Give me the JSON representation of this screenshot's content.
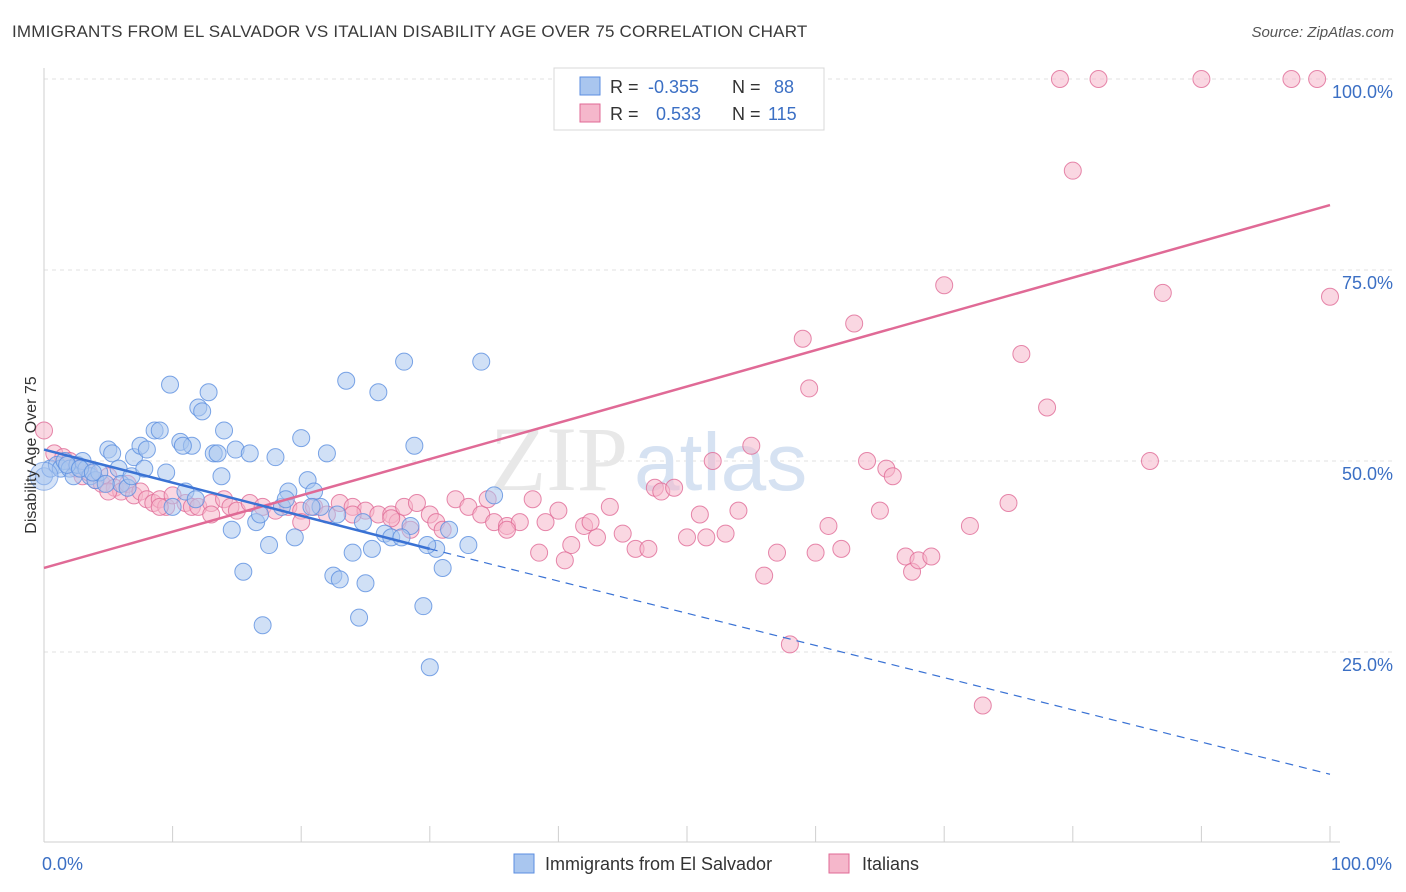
{
  "title": "IMMIGRANTS FROM EL SALVADOR VS ITALIAN DISABILITY AGE OVER 75 CORRELATION CHART",
  "source": "Source: ZipAtlas.com",
  "watermark": {
    "zip": "ZIP",
    "atlas": "atlas"
  },
  "colors": {
    "blue": "#5b8ee0",
    "blue_fill": "#a9c6ef",
    "pink": "#e06a96",
    "pink_fill": "#f5b7cb",
    "tick": "#3b6fc4"
  },
  "legend": {
    "r_label": "R =",
    "n_label": "N =",
    "blue": {
      "r": "-0.355",
      "n": "88"
    },
    "pink": {
      "r": "0.533",
      "n": "115"
    }
  },
  "bottom_legend": {
    "blue": "Immigrants from El Salvador",
    "pink": "Italians"
  },
  "chart_data": {
    "type": "scatter",
    "title": "IMMIGRANTS FROM EL SALVADOR VS ITALIAN DISABILITY AGE OVER 75 CORRELATION CHART",
    "xlabel": "",
    "ylabel": "Disability Age Over 75",
    "xlim": [
      0,
      100
    ],
    "ylim": [
      0,
      103
    ],
    "x_tick_labels": [
      "0.0%",
      "100.0%"
    ],
    "y_tick_labels": [
      "25.0%",
      "50.0%",
      "75.0%",
      "100.0%"
    ],
    "y_ticks": [
      25,
      50,
      75,
      100
    ],
    "grid": true,
    "legend_position": "top-center",
    "series": [
      {
        "name": "Immigrants from El Salvador",
        "color": "#5b8ee0",
        "trend": {
          "x0": 0,
          "y0": 51.5,
          "x1": 30,
          "y1": 38.5,
          "dash_to_x": 100,
          "dash_to_y": 9
        },
        "points": [
          [
            0,
            48
          ],
          [
            0.5,
            49
          ],
          [
            1,
            49.5
          ],
          [
            1.3,
            49
          ],
          [
            1.6,
            50
          ],
          [
            2,
            49
          ],
          [
            2.3,
            48
          ],
          [
            2.6,
            49.5
          ],
          [
            3,
            50
          ],
          [
            3.3,
            49
          ],
          [
            3.6,
            48
          ],
          [
            4,
            47.5
          ],
          [
            4.3,
            48.5
          ],
          [
            5,
            51.5
          ],
          [
            5.3,
            51
          ],
          [
            5.8,
            49
          ],
          [
            6,
            47
          ],
          [
            6.5,
            46.5
          ],
          [
            7,
            50.5
          ],
          [
            7.5,
            52
          ],
          [
            8,
            51.5
          ],
          [
            8.6,
            54
          ],
          [
            9,
            54
          ],
          [
            9.5,
            48.5
          ],
          [
            10,
            44
          ],
          [
            10.6,
            52.5
          ],
          [
            11,
            46
          ],
          [
            11.5,
            52
          ],
          [
            12,
            57
          ],
          [
            12.3,
            56.5
          ],
          [
            12.8,
            59
          ],
          [
            13.2,
            51
          ],
          [
            13.5,
            51
          ],
          [
            14,
            54
          ],
          [
            14.6,
            41
          ],
          [
            14.9,
            51.5
          ],
          [
            15.5,
            35.5
          ],
          [
            16,
            51
          ],
          [
            16.5,
            42
          ],
          [
            17,
            28.5
          ],
          [
            17.5,
            39
          ],
          [
            18,
            50.5
          ],
          [
            18.5,
            44
          ],
          [
            19,
            46
          ],
          [
            19.5,
            40
          ],
          [
            20,
            53
          ],
          [
            20.5,
            47.5
          ],
          [
            21,
            46
          ],
          [
            21.5,
            44
          ],
          [
            22,
            51
          ],
          [
            22.5,
            35
          ],
          [
            23,
            34.5
          ],
          [
            23.5,
            60.5
          ],
          [
            24,
            38
          ],
          [
            24.5,
            29.5
          ],
          [
            25,
            34
          ],
          [
            25.5,
            38.5
          ],
          [
            26,
            59
          ],
          [
            26.5,
            40.5
          ],
          [
            27,
            40
          ],
          [
            28,
            63
          ],
          [
            28.5,
            41.5
          ],
          [
            28.8,
            52
          ],
          [
            29.5,
            31
          ],
          [
            30,
            23
          ],
          [
            30.5,
            38.5
          ],
          [
            31,
            36
          ],
          [
            33,
            39
          ],
          [
            34,
            63
          ],
          [
            35,
            45.5
          ],
          [
            1.8,
            49.5
          ],
          [
            2.8,
            49
          ],
          [
            3.8,
            48.5
          ],
          [
            4.8,
            47
          ],
          [
            6.8,
            48
          ],
          [
            7.8,
            49
          ],
          [
            9.8,
            60
          ],
          [
            10.8,
            52
          ],
          [
            11.8,
            45
          ],
          [
            13.8,
            48
          ],
          [
            16.8,
            43
          ],
          [
            18.8,
            45
          ],
          [
            20.8,
            44
          ],
          [
            22.8,
            43
          ],
          [
            24.8,
            42
          ],
          [
            27.8,
            40
          ],
          [
            29.8,
            39
          ],
          [
            31.5,
            41
          ]
        ]
      },
      {
        "name": "Italians",
        "color": "#e06a96",
        "trend": {
          "x0": 0,
          "y0": 36,
          "x1": 100,
          "y1": 83.5
        },
        "points": [
          [
            0,
            54
          ],
          [
            0.8,
            51
          ],
          [
            1.5,
            50.5
          ],
          [
            2,
            50
          ],
          [
            2.5,
            49
          ],
          [
            3,
            48
          ],
          [
            3.5,
            48.5
          ],
          [
            4,
            47.5
          ],
          [
            4.5,
            47
          ],
          [
            5,
            48
          ],
          [
            5.5,
            46.5
          ],
          [
            6,
            46
          ],
          [
            6.5,
            47
          ],
          [
            7,
            45.5
          ],
          [
            7.5,
            46
          ],
          [
            8,
            45
          ],
          [
            8.5,
            44.5
          ],
          [
            9,
            45
          ],
          [
            9.5,
            44
          ],
          [
            10,
            45.5
          ],
          [
            11,
            44.5
          ],
          [
            11.5,
            44
          ],
          [
            12,
            44
          ],
          [
            13,
            44.5
          ],
          [
            14,
            45
          ],
          [
            14.5,
            44
          ],
          [
            15,
            43.5
          ],
          [
            16,
            44.5
          ],
          [
            17,
            44
          ],
          [
            18,
            43.5
          ],
          [
            19,
            44
          ],
          [
            20,
            43.5
          ],
          [
            21,
            44
          ],
          [
            22,
            43
          ],
          [
            23,
            44.5
          ],
          [
            24,
            44
          ],
          [
            25,
            43.5
          ],
          [
            26,
            43
          ],
          [
            27,
            43
          ],
          [
            27.5,
            42
          ],
          [
            28,
            44
          ],
          [
            29,
            44.5
          ],
          [
            30,
            43
          ],
          [
            30.5,
            42
          ],
          [
            31,
            41
          ],
          [
            32,
            45
          ],
          [
            33,
            44
          ],
          [
            34,
            43
          ],
          [
            35,
            42
          ],
          [
            36,
            41.5
          ],
          [
            37,
            42
          ],
          [
            38,
            45
          ],
          [
            39,
            42
          ],
          [
            40,
            43.5
          ],
          [
            41,
            39
          ],
          [
            42,
            41.5
          ],
          [
            43,
            40
          ],
          [
            44,
            44
          ],
          [
            45,
            40.5
          ],
          [
            46,
            38.5
          ],
          [
            47,
            38.5
          ],
          [
            47.5,
            46.5
          ],
          [
            48,
            46
          ],
          [
            49,
            46.5
          ],
          [
            50,
            40
          ],
          [
            51,
            43
          ],
          [
            51.5,
            40
          ],
          [
            52,
            50
          ],
          [
            53,
            40.5
          ],
          [
            54,
            43.5
          ],
          [
            55,
            52
          ],
          [
            56,
            35
          ],
          [
            57,
            38
          ],
          [
            58,
            26
          ],
          [
            59,
            66
          ],
          [
            59.5,
            59.5
          ],
          [
            60,
            38
          ],
          [
            61,
            41.5
          ],
          [
            62,
            38.5
          ],
          [
            63,
            68
          ],
          [
            64,
            50
          ],
          [
            65,
            43.5
          ],
          [
            65.5,
            49
          ],
          [
            66,
            48
          ],
          [
            67,
            37.5
          ],
          [
            67.5,
            35.5
          ],
          [
            68,
            37
          ],
          [
            69,
            37.5
          ],
          [
            70,
            73
          ],
          [
            72,
            41.5
          ],
          [
            73,
            18
          ],
          [
            75,
            44.5
          ],
          [
            76,
            64
          ],
          [
            78,
            57
          ],
          [
            79,
            100
          ],
          [
            80,
            88
          ],
          [
            82,
            100
          ],
          [
            86,
            50
          ],
          [
            87,
            72
          ],
          [
            90,
            100
          ],
          [
            97,
            100
          ],
          [
            99,
            100
          ],
          [
            100,
            71.5
          ],
          [
            36,
            41
          ],
          [
            38.5,
            38
          ],
          [
            40.5,
            37
          ],
          [
            42.5,
            42
          ],
          [
            34.5,
            45
          ],
          [
            28.5,
            41
          ],
          [
            27,
            42.5
          ],
          [
            24,
            43
          ],
          [
            20,
            42
          ],
          [
            13,
            43
          ],
          [
            9,
            44
          ],
          [
            5,
            46
          ]
        ]
      }
    ]
  }
}
